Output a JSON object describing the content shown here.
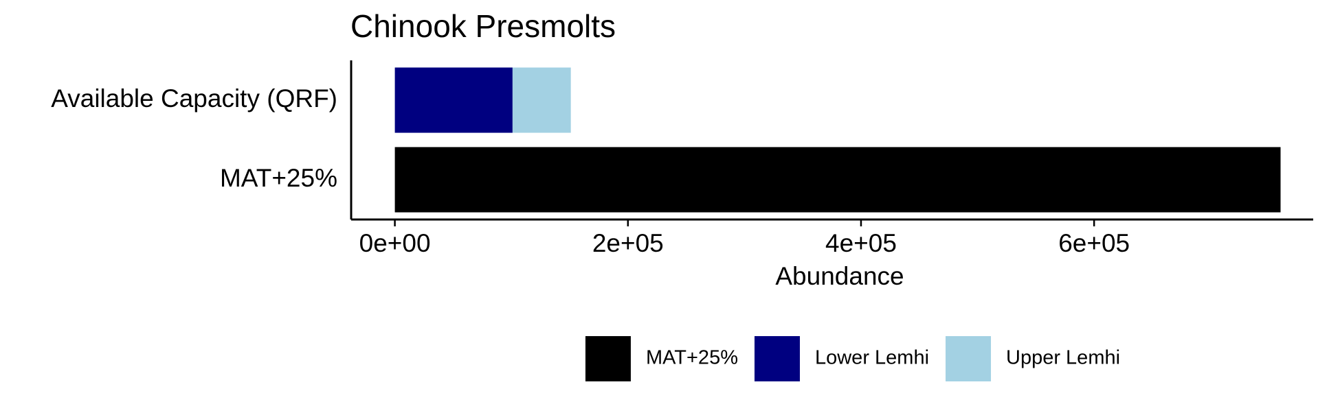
{
  "chart_data": {
    "type": "bar",
    "orientation": "horizontal",
    "stacked": true,
    "title": "Chinook Presmolts",
    "xlabel": "Abundance",
    "ylabel": "",
    "categories": [
      "Available Capacity (QRF)",
      "MAT+25%"
    ],
    "series": [
      {
        "name": "MAT+25%",
        "color": "#000000",
        "values": [
          0,
          760000
        ]
      },
      {
        "name": "Lower Lemhi",
        "color": "#000080",
        "values": [
          101000,
          0
        ]
      },
      {
        "name": "Upper Lemhi",
        "color": "#A3D1E3",
        "values": [
          50000,
          0
        ]
      }
    ],
    "xlim": [
      -37500,
      788000
    ],
    "xticks": [
      0,
      200000,
      400000,
      600000
    ],
    "xtick_labels": [
      "0e+00",
      "2e+05",
      "4e+05",
      "6e+05"
    ],
    "grid": false,
    "legend_position": "bottom"
  }
}
